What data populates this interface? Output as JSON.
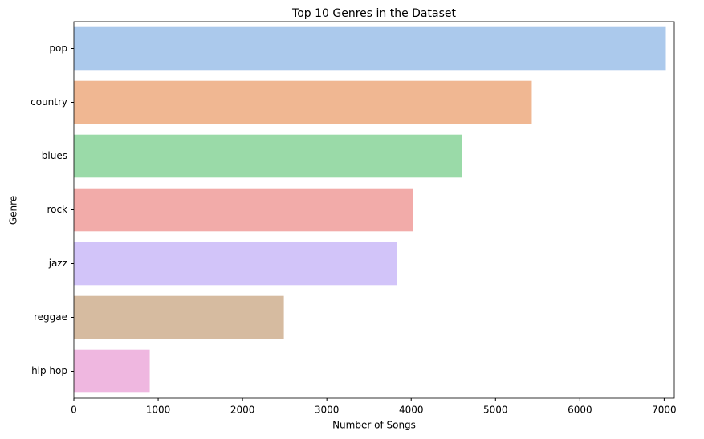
{
  "chart_data": {
    "type": "barh",
    "title": "Top 10 Genres in the Dataset",
    "x_label": "Number of Songs",
    "y_label": "Genre",
    "categories": [
      "pop",
      "country",
      "blues",
      "rock",
      "jazz",
      "reggae",
      "hip hop"
    ],
    "values": [
      7020,
      5430,
      4600,
      4020,
      3830,
      2490,
      900
    ],
    "colors": [
      "#abc9ec",
      "#f0b792",
      "#9adaa8",
      "#f2aba9",
      "#d2c4f9",
      "#d6bba0",
      "#efb7e0"
    ],
    "xlim": [
      0,
      7120
    ],
    "xticks": [
      0,
      1000,
      2000,
      3000,
      4000,
      5000,
      6000,
      7000
    ]
  }
}
